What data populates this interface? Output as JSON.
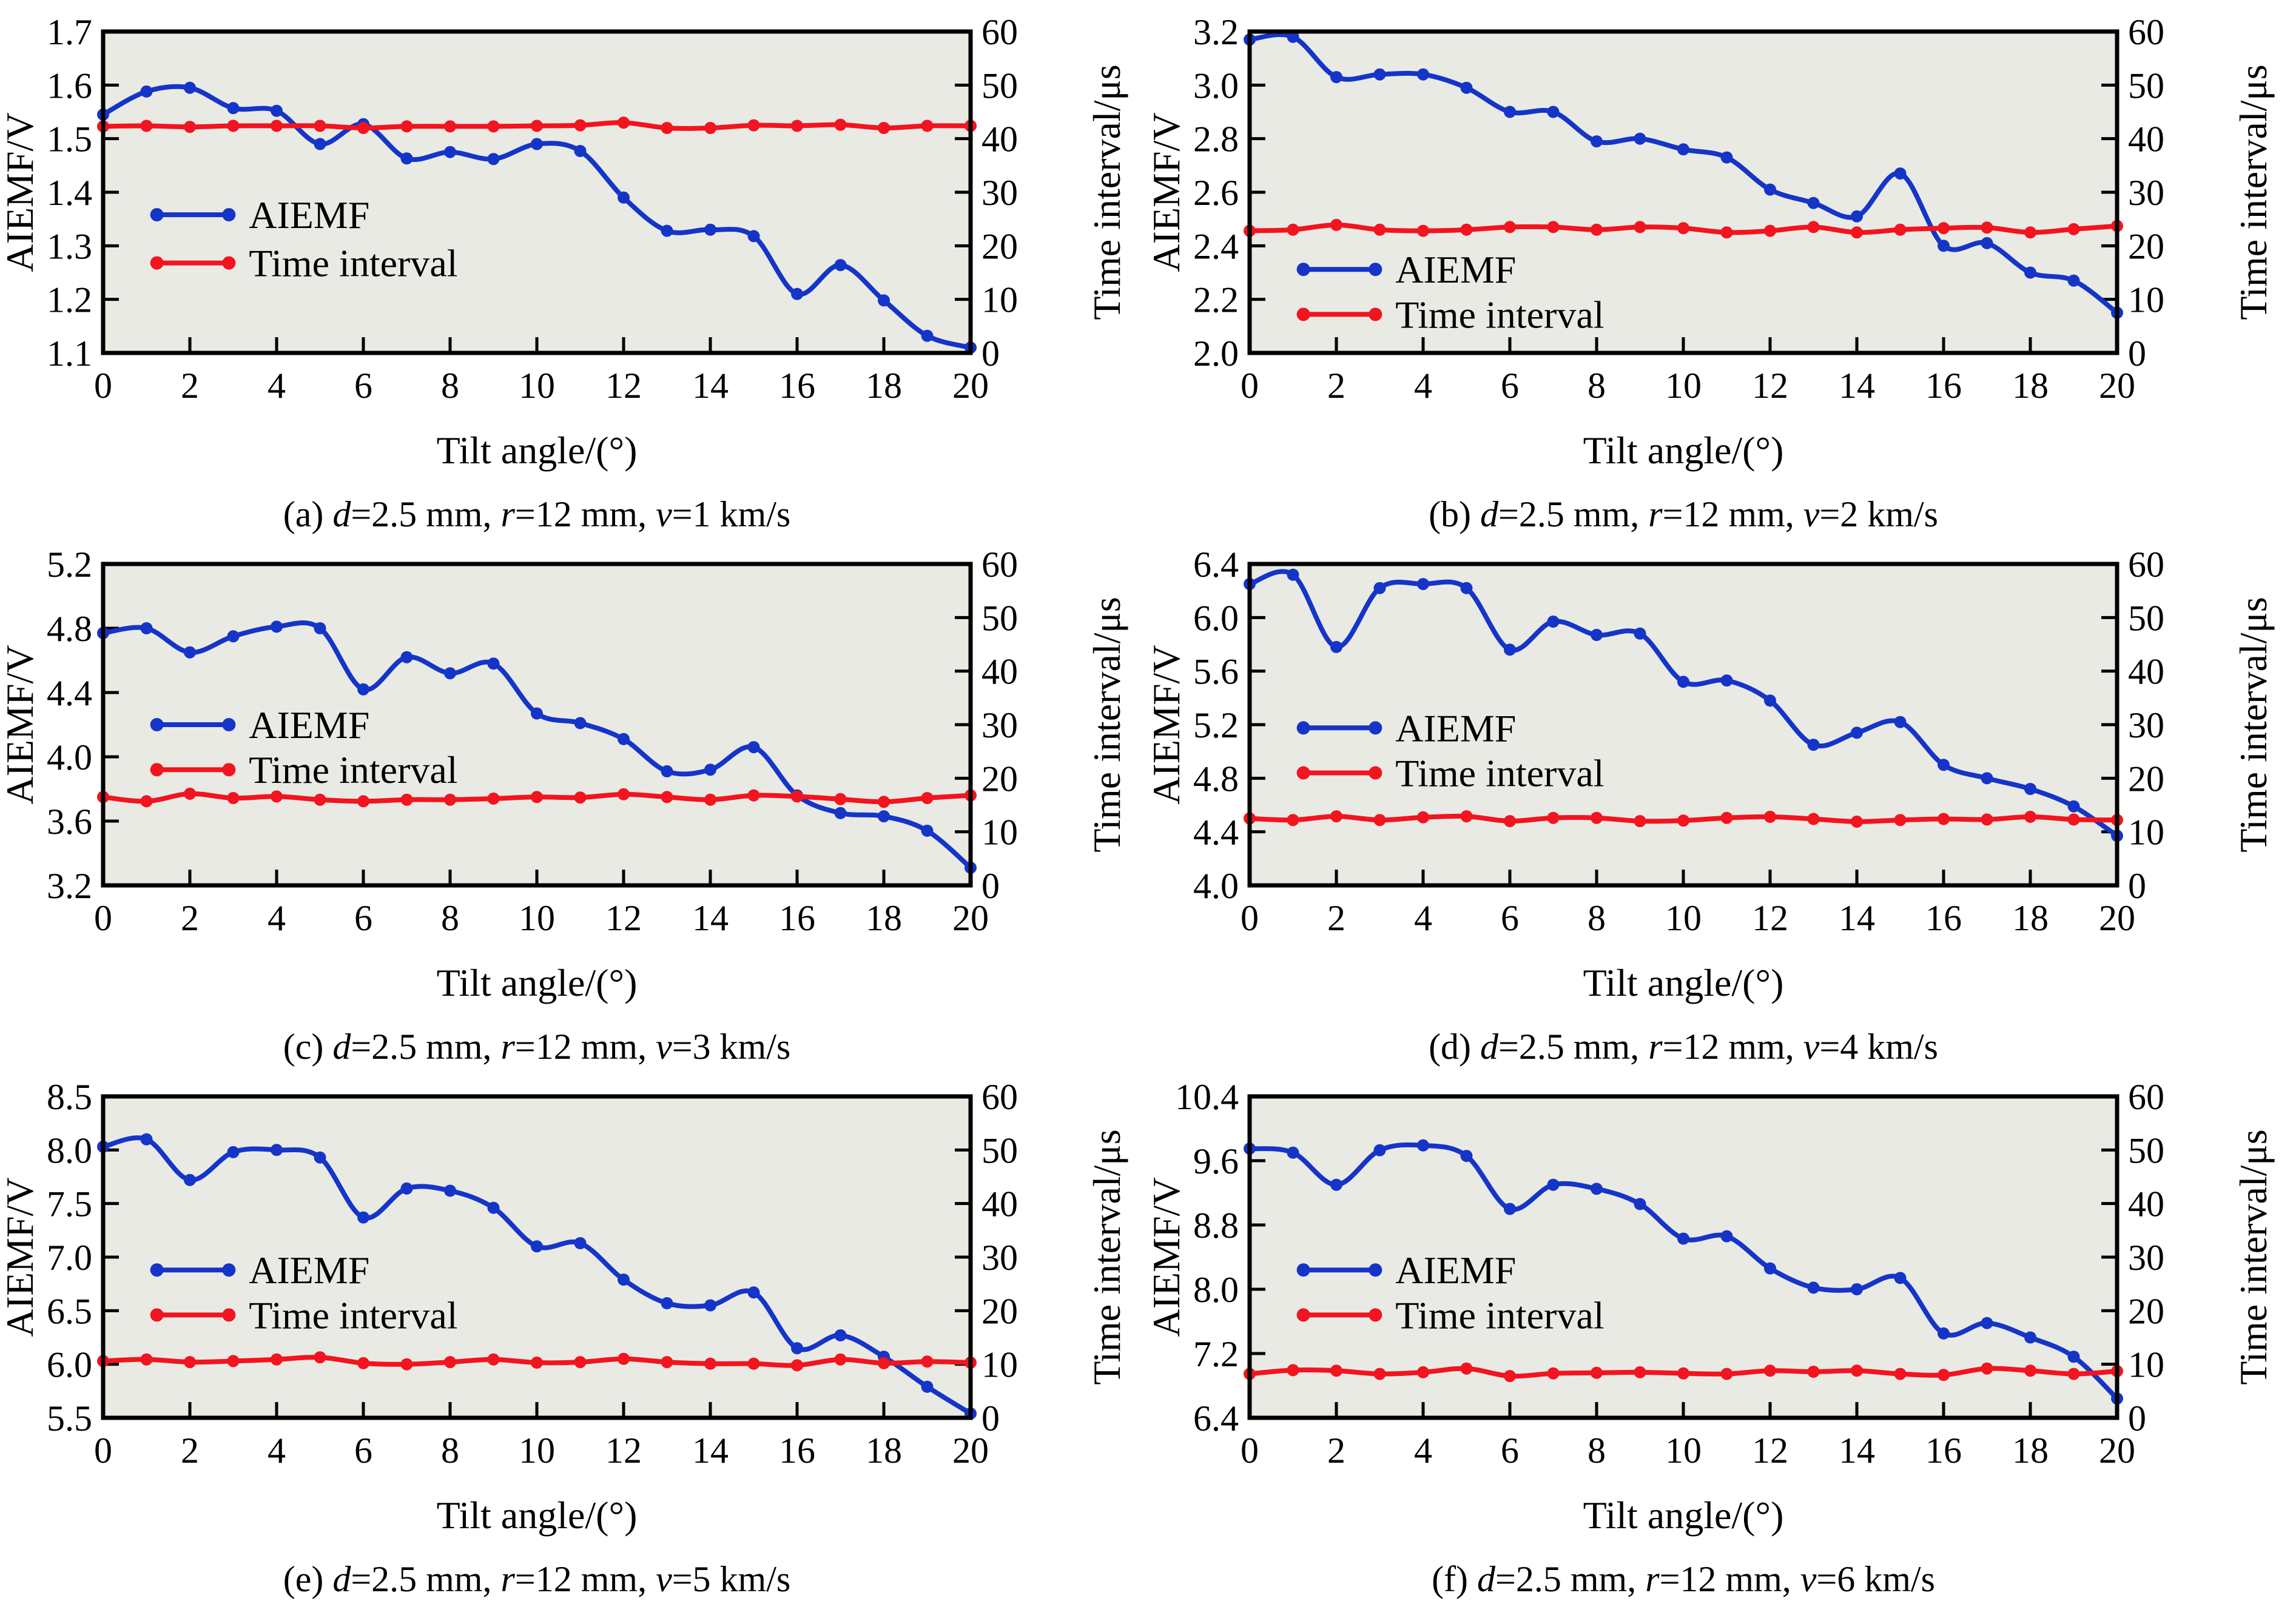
{
  "figure": {
    "xlabel": "Tilt angle/(°)",
    "ylabel_left": "AIEMF/V",
    "ylabel_right": "Time interval/μs",
    "legend": [
      "AIEMF",
      "Time interval"
    ],
    "colors": {
      "aiemf": "#1535c8",
      "interval": "#f2141e",
      "plot_bg": "#eaeae5",
      "axis": "#000000"
    }
  },
  "chart_data": [
    {
      "id": "a",
      "type": "line",
      "caption": {
        "label": "(a)",
        "parts": [
          {
            "t": "d",
            "i": true
          },
          {
            "t": "=2.5 mm, "
          },
          {
            "t": "r",
            "i": true
          },
          {
            "t": "=12 mm, "
          },
          {
            "t": "v",
            "i": true
          },
          {
            "t": "=1 km/s"
          }
        ]
      },
      "x": [
        0,
        1,
        2,
        3,
        4,
        5,
        6,
        7,
        8,
        9,
        10,
        11,
        12,
        13,
        14,
        15,
        16,
        17,
        18,
        19,
        20
      ],
      "xticks": [
        0,
        2,
        4,
        6,
        8,
        10,
        12,
        14,
        16,
        18,
        20
      ],
      "ylim_left": [
        1.1,
        1.7
      ],
      "yticks_left": [
        "1.1",
        "1.2",
        "1.3",
        "1.4",
        "1.5",
        "1.6",
        "1.7"
      ],
      "ylim_right": [
        0,
        60
      ],
      "yticks_right": [
        "0",
        "10",
        "20",
        "30",
        "40",
        "50",
        "60"
      ],
      "legend_y": [
        0.57,
        0.72
      ],
      "series": [
        {
          "name": "AIEMF",
          "axis": "left",
          "unit": "V",
          "values": [
            1.545,
            1.588,
            1.595,
            1.557,
            1.552,
            1.49,
            1.527,
            1.463,
            1.475,
            1.462,
            1.49,
            1.477,
            1.39,
            1.328,
            1.33,
            1.318,
            1.21,
            1.264,
            1.198,
            1.132,
            1.11
          ]
        },
        {
          "name": "Time interval",
          "axis": "right",
          "unit": "μs",
          "values": [
            42.3,
            42.4,
            42.2,
            42.4,
            42.4,
            42.4,
            42.0,
            42.3,
            42.3,
            42.3,
            42.4,
            42.5,
            43.0,
            42.0,
            42.0,
            42.5,
            42.4,
            42.6,
            42.0,
            42.4,
            42.4
          ]
        }
      ]
    },
    {
      "id": "b",
      "type": "line",
      "caption": {
        "label": "(b)",
        "parts": [
          {
            "t": "d",
            "i": true
          },
          {
            "t": "=2.5 mm, "
          },
          {
            "t": "r",
            "i": true
          },
          {
            "t": "=12 mm, "
          },
          {
            "t": "v",
            "i": true
          },
          {
            "t": "=2 km/s"
          }
        ]
      },
      "x": [
        0,
        1,
        2,
        3,
        4,
        5,
        6,
        7,
        8,
        9,
        10,
        11,
        12,
        13,
        14,
        15,
        16,
        17,
        18,
        19,
        20
      ],
      "xticks": [
        0,
        2,
        4,
        6,
        8,
        10,
        12,
        14,
        16,
        18,
        20
      ],
      "ylim_left": [
        2.0,
        3.2
      ],
      "yticks_left": [
        "2.0",
        "2.2",
        "2.4",
        "2.6",
        "2.8",
        "3.0",
        "3.2"
      ],
      "ylim_right": [
        0,
        60
      ],
      "yticks_right": [
        "0",
        "10",
        "20",
        "30",
        "40",
        "50",
        "60"
      ],
      "legend_y": [
        0.74,
        0.88
      ],
      "series": [
        {
          "name": "AIEMF",
          "axis": "left",
          "unit": "V",
          "values": [
            3.17,
            3.18,
            3.03,
            3.04,
            3.04,
            2.99,
            2.9,
            2.9,
            2.79,
            2.8,
            2.76,
            2.73,
            2.61,
            2.56,
            2.51,
            2.67,
            2.4,
            2.41,
            2.3,
            2.27,
            2.15
          ]
        },
        {
          "name": "Time interval",
          "axis": "right",
          "unit": "μs",
          "values": [
            22.8,
            23.0,
            23.9,
            23.0,
            22.8,
            23.0,
            23.5,
            23.5,
            23.0,
            23.5,
            23.3,
            22.5,
            22.8,
            23.5,
            22.5,
            23.0,
            23.3,
            23.4,
            22.5,
            23.1,
            23.7
          ]
        }
      ]
    },
    {
      "id": "c",
      "type": "line",
      "caption": {
        "label": "(c)",
        "parts": [
          {
            "t": "d",
            "i": true
          },
          {
            "t": "=2.5 mm, "
          },
          {
            "t": "r",
            "i": true
          },
          {
            "t": "=12 mm, "
          },
          {
            "t": "v",
            "i": true
          },
          {
            "t": "=3 km/s"
          }
        ]
      },
      "x": [
        0,
        1,
        2,
        3,
        4,
        5,
        6,
        7,
        8,
        9,
        10,
        11,
        12,
        13,
        14,
        15,
        16,
        17,
        18,
        19,
        20
      ],
      "xticks": [
        0,
        2,
        4,
        6,
        8,
        10,
        12,
        14,
        16,
        18,
        20
      ],
      "ylim_left": [
        3.2,
        5.2
      ],
      "yticks_left": [
        "3.2",
        "3.6",
        "4.0",
        "4.4",
        "4.8",
        "5.2"
      ],
      "ylim_right": [
        0,
        60
      ],
      "yticks_right": [
        "0",
        "10",
        "20",
        "30",
        "40",
        "50",
        "60"
      ],
      "legend_y": [
        0.5,
        0.64
      ],
      "series": [
        {
          "name": "AIEMF",
          "axis": "left",
          "unit": "V",
          "values": [
            4.77,
            4.8,
            4.65,
            4.75,
            4.81,
            4.8,
            4.42,
            4.62,
            4.52,
            4.58,
            4.27,
            4.21,
            4.11,
            3.91,
            3.92,
            4.06,
            3.76,
            3.65,
            3.63,
            3.54,
            3.31
          ]
        },
        {
          "name": "Time interval",
          "axis": "right",
          "unit": "μs",
          "values": [
            16.5,
            15.7,
            17.1,
            16.3,
            16.6,
            16.0,
            15.7,
            16.0,
            16.0,
            16.2,
            16.5,
            16.4,
            17.0,
            16.5,
            16.0,
            16.8,
            16.6,
            16.1,
            15.6,
            16.3,
            16.8
          ]
        }
      ]
    },
    {
      "id": "d",
      "type": "line",
      "caption": {
        "label": "(d)",
        "parts": [
          {
            "t": "d",
            "i": true
          },
          {
            "t": "=2.5 mm, "
          },
          {
            "t": "r",
            "i": true
          },
          {
            "t": "=12 mm, "
          },
          {
            "t": "v",
            "i": true
          },
          {
            "t": "=4 km/s"
          }
        ]
      },
      "x": [
        0,
        1,
        2,
        3,
        4,
        5,
        6,
        7,
        8,
        9,
        10,
        11,
        12,
        13,
        14,
        15,
        16,
        17,
        18,
        19,
        20
      ],
      "xticks": [
        0,
        2,
        4,
        6,
        8,
        10,
        12,
        14,
        16,
        18,
        20
      ],
      "ylim_left": [
        4.0,
        6.4
      ],
      "yticks_left": [
        "4.0",
        "4.4",
        "4.8",
        "5.2",
        "5.6",
        "6.0",
        "6.4"
      ],
      "ylim_right": [
        0,
        60
      ],
      "yticks_right": [
        "0",
        "10",
        "20",
        "30",
        "40",
        "50",
        "60"
      ],
      "legend_y": [
        0.51,
        0.65
      ],
      "series": [
        {
          "name": "AIEMF",
          "axis": "left",
          "unit": "V",
          "values": [
            6.25,
            6.32,
            5.78,
            6.22,
            6.25,
            6.22,
            5.76,
            5.97,
            5.87,
            5.88,
            5.52,
            5.53,
            5.38,
            5.05,
            5.14,
            5.22,
            4.9,
            4.8,
            4.72,
            4.59,
            4.37
          ]
        },
        {
          "name": "Time interval",
          "axis": "right",
          "unit": "μs",
          "values": [
            12.5,
            12.2,
            12.9,
            12.2,
            12.7,
            12.9,
            12.0,
            12.6,
            12.6,
            12.0,
            12.1,
            12.6,
            12.8,
            12.4,
            11.9,
            12.2,
            12.4,
            12.3,
            12.8,
            12.3,
            12.2
          ]
        }
      ]
    },
    {
      "id": "e",
      "type": "line",
      "caption": {
        "label": "(e)",
        "parts": [
          {
            "t": "d",
            "i": true
          },
          {
            "t": "=2.5 mm, "
          },
          {
            "t": "r",
            "i": true
          },
          {
            "t": "=12 mm, "
          },
          {
            "t": "v",
            "i": true
          },
          {
            "t": "=5 km/s"
          }
        ]
      },
      "x": [
        0,
        1,
        2,
        3,
        4,
        5,
        6,
        7,
        8,
        9,
        10,
        11,
        12,
        13,
        14,
        15,
        16,
        17,
        18,
        19,
        20
      ],
      "xticks": [
        0,
        2,
        4,
        6,
        8,
        10,
        12,
        14,
        16,
        18,
        20
      ],
      "ylim_left": [
        5.5,
        8.5
      ],
      "yticks_left": [
        "5.5",
        "6.0",
        "6.5",
        "7.0",
        "7.5",
        "8.0",
        "8.5"
      ],
      "ylim_right": [
        0,
        60
      ],
      "yticks_right": [
        "0",
        "10",
        "20",
        "30",
        "40",
        "50",
        "60"
      ],
      "legend_y": [
        0.54,
        0.68
      ],
      "series": [
        {
          "name": "AIEMF",
          "axis": "left",
          "unit": "V",
          "values": [
            8.03,
            8.1,
            7.72,
            7.98,
            8.0,
            7.93,
            7.37,
            7.64,
            7.62,
            7.46,
            7.1,
            7.13,
            6.79,
            6.57,
            6.55,
            6.67,
            6.15,
            6.27,
            6.07,
            5.79,
            5.54
          ]
        },
        {
          "name": "Time interval",
          "axis": "right",
          "unit": "μs",
          "values": [
            10.6,
            10.9,
            10.4,
            10.6,
            10.9,
            11.3,
            10.2,
            10.0,
            10.4,
            10.9,
            10.3,
            10.4,
            11.0,
            10.4,
            10.1,
            10.1,
            9.8,
            10.9,
            10.2,
            10.5,
            10.3
          ]
        }
      ]
    },
    {
      "id": "f",
      "type": "line",
      "caption": {
        "label": "(f)",
        "parts": [
          {
            "t": "d",
            "i": true
          },
          {
            "t": "=2.5 mm, "
          },
          {
            "t": "r",
            "i": true
          },
          {
            "t": "=12 mm, "
          },
          {
            "t": "v",
            "i": true
          },
          {
            "t": "=6 km/s"
          }
        ]
      },
      "x": [
        0,
        1,
        2,
        3,
        4,
        5,
        6,
        7,
        8,
        9,
        10,
        11,
        12,
        13,
        14,
        15,
        16,
        17,
        18,
        19,
        20
      ],
      "xticks": [
        0,
        2,
        4,
        6,
        8,
        10,
        12,
        14,
        16,
        18,
        20
      ],
      "ylim_left": [
        6.4,
        10.4
      ],
      "yticks_left": [
        "6.4",
        "7.2",
        "8.0",
        "8.8",
        "9.6",
        "10.4"
      ],
      "ylim_right": [
        0,
        60
      ],
      "yticks_right": [
        "0",
        "10",
        "20",
        "30",
        "40",
        "50",
        "60"
      ],
      "legend_y": [
        0.54,
        0.68
      ],
      "series": [
        {
          "name": "AIEMF",
          "axis": "left",
          "unit": "V",
          "values": [
            9.75,
            9.7,
            9.3,
            9.73,
            9.79,
            9.66,
            9.0,
            9.3,
            9.25,
            9.06,
            8.63,
            8.66,
            8.26,
            8.02,
            8.0,
            8.14,
            7.45,
            7.58,
            7.4,
            7.16,
            6.64
          ]
        },
        {
          "name": "Time interval",
          "axis": "right",
          "unit": "μs",
          "values": [
            8.2,
            8.9,
            8.8,
            8.2,
            8.5,
            9.2,
            7.8,
            8.3,
            8.4,
            8.5,
            8.3,
            8.2,
            8.8,
            8.6,
            8.8,
            8.2,
            8.0,
            9.2,
            8.8,
            8.2,
            8.7
          ]
        }
      ]
    }
  ]
}
